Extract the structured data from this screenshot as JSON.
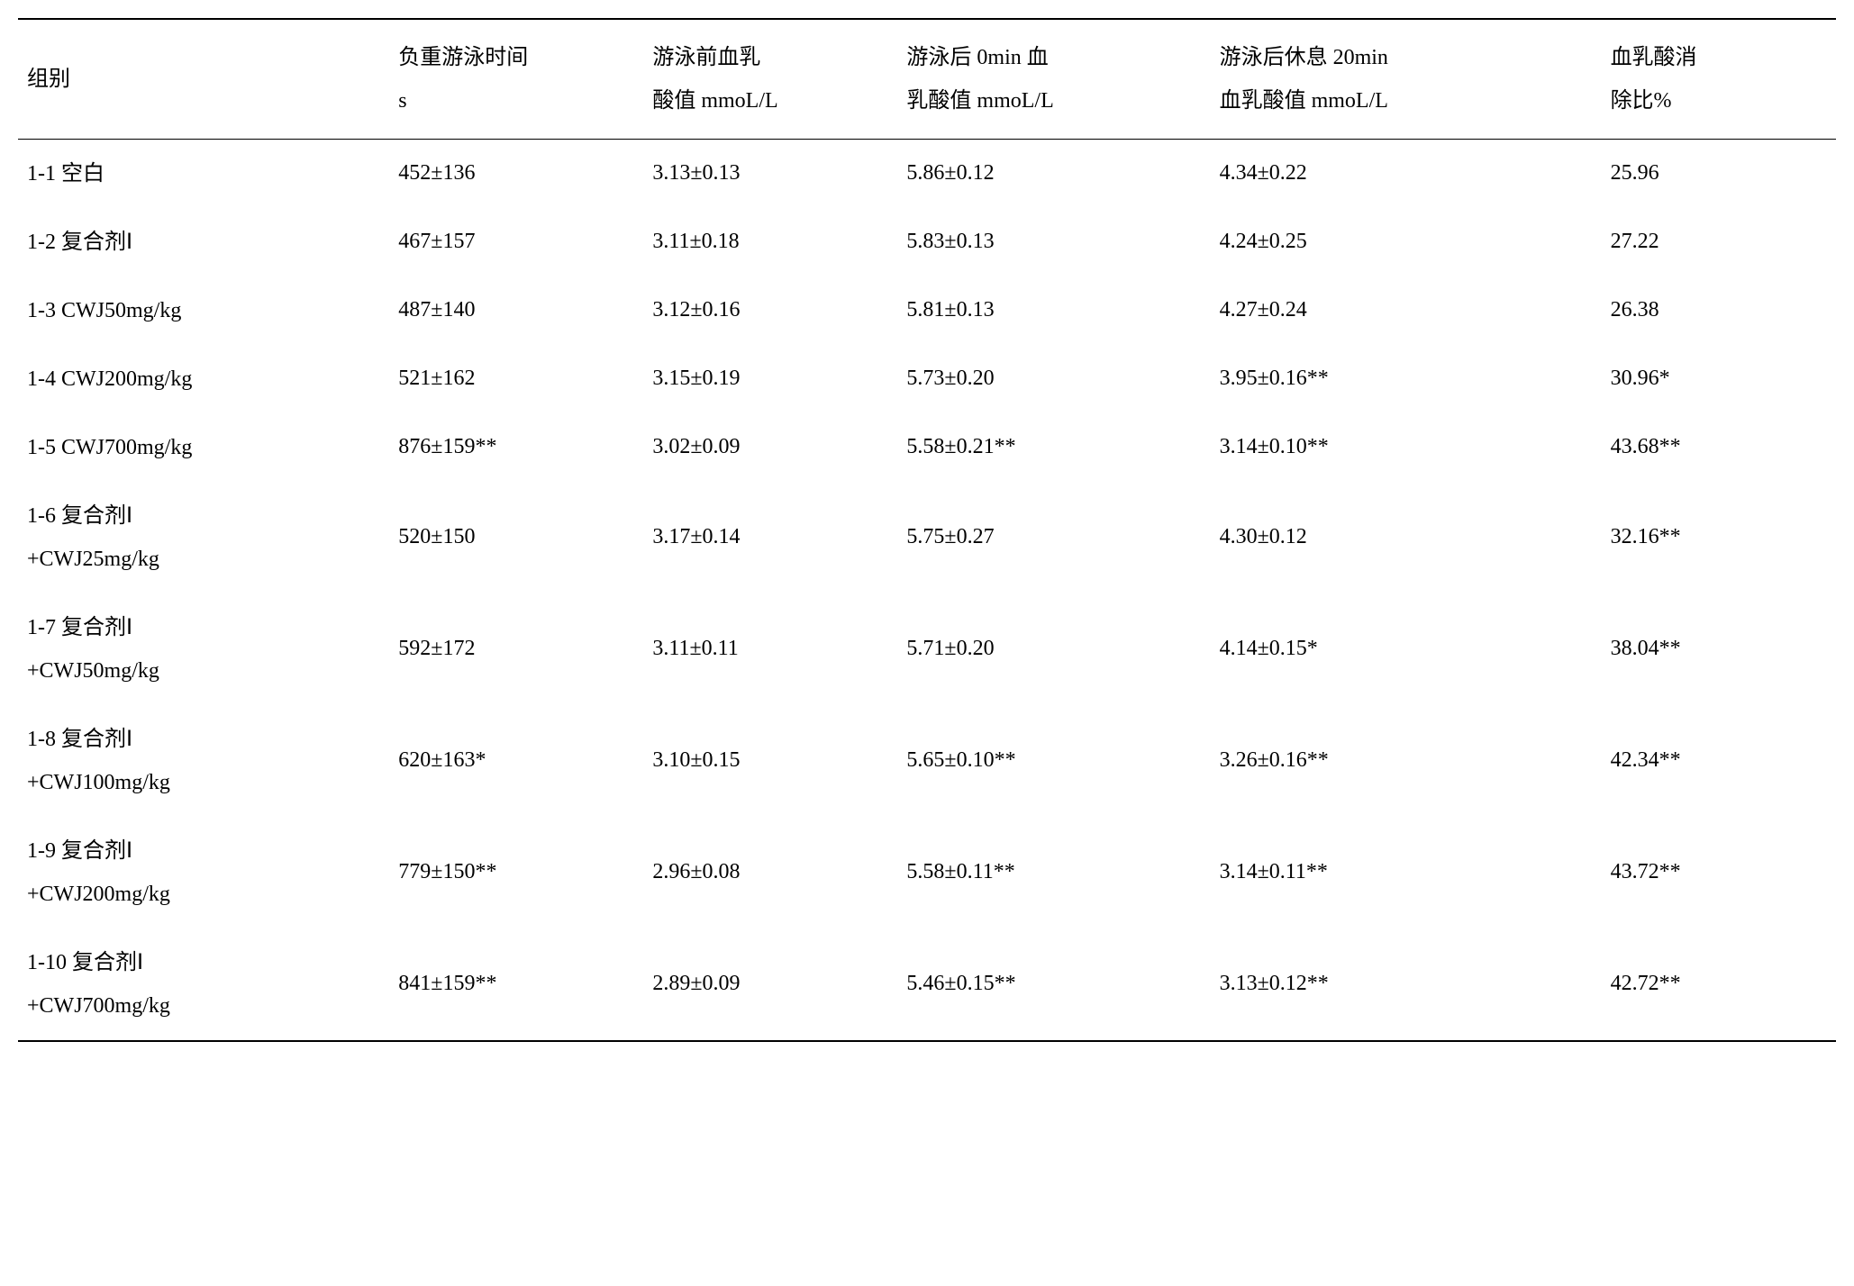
{
  "table": {
    "headers": {
      "group": "组别",
      "c1": "负重游泳时间\ns",
      "c2": "游泳前血乳\n酸值 mmoL/L",
      "c3": "游泳后 0min 血\n乳酸值 mmoL/L",
      "c4": "游泳后休息 20min\n血乳酸值 mmoL/L",
      "c5": "血乳酸消\n除比%"
    },
    "rows": [
      {
        "group": "1-1 空白",
        "c1": "452±136",
        "c2": "3.13±0.13",
        "c3": "5.86±0.12",
        "c4": "4.34±0.22",
        "c5": "25.96"
      },
      {
        "group": "1-2 复合剂Ⅰ",
        "c1": "467±157",
        "c2": "3.11±0.18",
        "c3": "5.83±0.13",
        "c4": "4.24±0.25",
        "c5": "27.22"
      },
      {
        "group": "1-3 CWJ50mg/kg",
        "c1": "487±140",
        "c2": "3.12±0.16",
        "c3": "5.81±0.13",
        "c4": "4.27±0.24",
        "c5": "26.38"
      },
      {
        "group": "1-4 CWJ200mg/kg",
        "c1": "521±162",
        "c2": "3.15±0.19",
        "c3": "5.73±0.20",
        "c4": "3.95±0.16**",
        "c5": "30.96*"
      },
      {
        "group": "1-5 CWJ700mg/kg",
        "c1": "876±159**",
        "c2": "3.02±0.09",
        "c3": "5.58±0.21**",
        "c4": "3.14±0.10**",
        "c5": "43.68**"
      },
      {
        "group": "1-6 复合剂Ⅰ\n+CWJ25mg/kg",
        "c1": "520±150",
        "c2": "3.17±0.14",
        "c3": "5.75±0.27",
        "c4": "4.30±0.12",
        "c5": "32.16**"
      },
      {
        "group": "1-7 复合剂Ⅰ\n+CWJ50mg/kg",
        "c1": "592±172",
        "c2": "3.11±0.11",
        "c3": "5.71±0.20",
        "c4": "4.14±0.15*",
        "c5": "38.04**"
      },
      {
        "group": "1-8 复合剂Ⅰ\n+CWJ100mg/kg",
        "c1": "620±163*",
        "c2": "3.10±0.15",
        "c3": "5.65±0.10**",
        "c4": "3.26±0.16**",
        "c5": "42.34**"
      },
      {
        "group": "1-9 复合剂Ⅰ\n+CWJ200mg/kg",
        "c1": "779±150**",
        "c2": "2.96±0.08",
        "c3": "5.58±0.11**",
        "c4": "3.14±0.11**",
        "c5": "43.72**"
      },
      {
        "group": "1-10 复合剂Ⅰ\n+CWJ700mg/kg",
        "c1": "841±159**",
        "c2": "2.89±0.09",
        "c3": "5.46±0.15**",
        "c4": "3.13±0.12**",
        "c5": "42.72**"
      }
    ]
  }
}
